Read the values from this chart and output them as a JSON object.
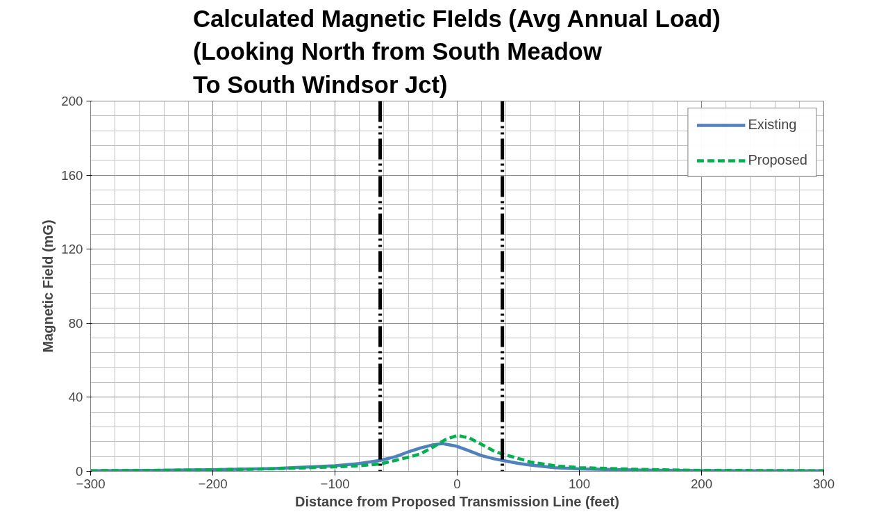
{
  "chart_data": {
    "type": "line",
    "title": "Calculated Magnetic FIelds (Avg Annual Load)\n(Looking North from South Meadow\nTo South Windsor Jct)",
    "xlabel": "Distance from Proposed Transmission Line (feet)",
    "ylabel": "Magnetic Field (mG)",
    "xlim": [
      -300,
      300
    ],
    "xticks": [
      -300,
      -200,
      -100,
      0,
      100,
      200,
      300
    ],
    "ylim": [
      0,
      200
    ],
    "yticks": [
      0,
      40,
      80,
      120,
      160,
      200
    ],
    "grid": true,
    "legend": "top right",
    "marker": "none",
    "ref_lines": [
      {
        "axis": "x",
        "value": -63,
        "color": "#000000",
        "line_style": "dashdot"
      },
      {
        "axis": "x",
        "value": 37,
        "color": "#000000",
        "line_style": "dashdot"
      }
    ],
    "series": [
      {
        "name": "Existing",
        "color": "#4f81bd",
        "line_style": "solid",
        "x": [
          -300,
          -250,
          -200,
          -150,
          -100,
          -80,
          -63,
          -50,
          -40,
          -30,
          -20,
          -12,
          0,
          10,
          20,
          30,
          37,
          50,
          60,
          80,
          100,
          150,
          200,
          250,
          300
        ],
        "values": [
          0.3,
          0.5,
          0.8,
          1.5,
          3,
          4.2,
          5.9,
          8,
          10.5,
          12.6,
          14.3,
          15,
          13.5,
          11,
          8.5,
          6.8,
          5.9,
          4.3,
          3.4,
          2,
          1.3,
          0.7,
          0.4,
          0.3,
          0.3
        ]
      },
      {
        "name": "Proposed",
        "color": "#00b050",
        "line_style": "dashed",
        "x": [
          -300,
          -250,
          -200,
          -150,
          -100,
          -80,
          -63,
          -50,
          -40,
          -30,
          -20,
          -10,
          0,
          10,
          20,
          30,
          37,
          50,
          60,
          80,
          100,
          150,
          200,
          250,
          300
        ],
        "values": [
          0.3,
          0.5,
          0.8,
          1.4,
          2.4,
          3,
          4,
          6,
          7.6,
          9.5,
          13,
          17,
          19.4,
          18,
          14.5,
          11,
          9.3,
          7,
          5,
          3,
          2,
          1,
          0.5,
          0.4,
          0.3
        ]
      }
    ]
  }
}
